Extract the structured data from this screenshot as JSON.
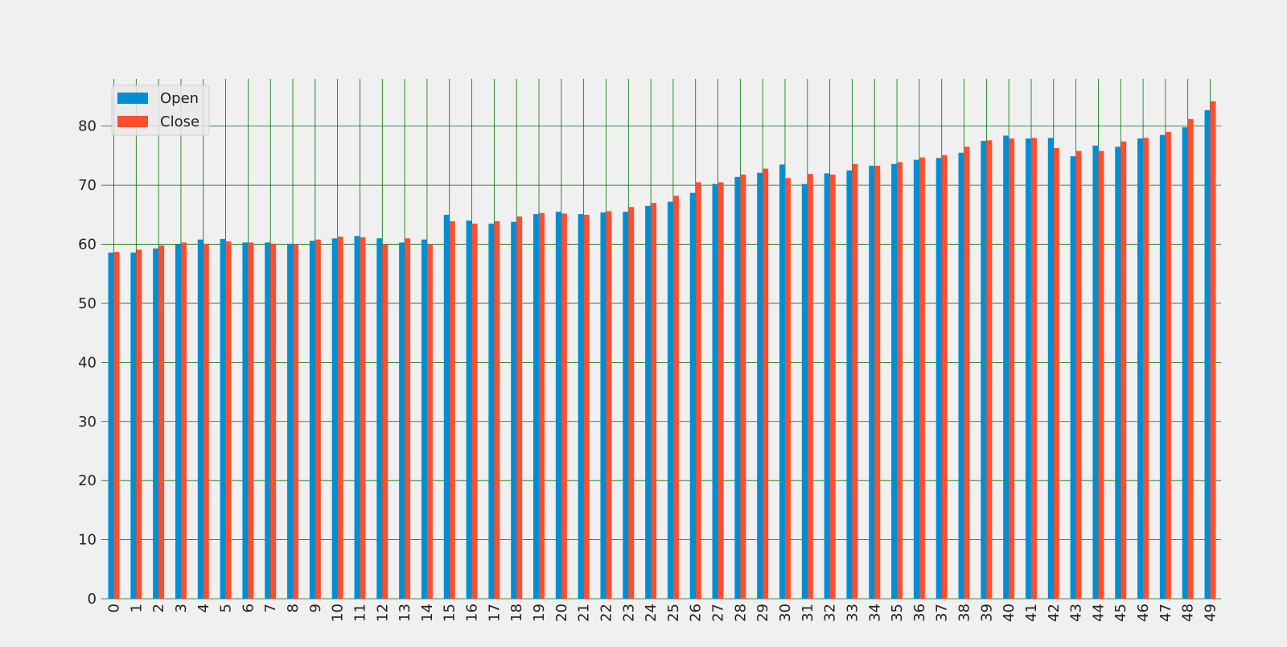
{
  "chart_data": {
    "type": "bar",
    "title": "",
    "xlabel": "",
    "ylabel": "",
    "ylim": [
      0,
      88
    ],
    "yticks": [
      0,
      10,
      20,
      30,
      40,
      50,
      60,
      70,
      80
    ],
    "grid": true,
    "legend_position": "top-left",
    "x_tick_rotation": "vertical",
    "categories": [
      "0",
      "1",
      "2",
      "3",
      "4",
      "5",
      "6",
      "7",
      "8",
      "9",
      "10",
      "11",
      "12",
      "13",
      "14",
      "15",
      "16",
      "17",
      "18",
      "19",
      "20",
      "21",
      "22",
      "23",
      "24",
      "25",
      "26",
      "27",
      "28",
      "29",
      "30",
      "31",
      "32",
      "33",
      "34",
      "35",
      "36",
      "37",
      "38",
      "39",
      "40",
      "41",
      "42",
      "43",
      "44",
      "45",
      "46",
      "47",
      "48",
      "49"
    ],
    "series": [
      {
        "name": "Open",
        "color": "#008fd5",
        "values": [
          58.6,
          58.6,
          59.3,
          60.0,
          60.8,
          60.9,
          60.3,
          60.3,
          60.1,
          60.6,
          61.0,
          61.4,
          61.0,
          60.3,
          60.8,
          65.0,
          64.0,
          63.5,
          63.8,
          65.1,
          65.5,
          65.1,
          65.4,
          65.5,
          66.5,
          67.2,
          68.7,
          70.2,
          71.4,
          72.1,
          73.5,
          70.2,
          72.0,
          72.5,
          73.3,
          73.6,
          74.3,
          74.6,
          75.5,
          77.5,
          78.4,
          77.9,
          78.0,
          74.9,
          76.7,
          76.5,
          77.9,
          78.5,
          79.8,
          82.7
        ]
      },
      {
        "name": "Close",
        "color": "#fc4f30",
        "values": [
          58.7,
          59.1,
          59.8,
          60.3,
          60.1,
          60.5,
          60.3,
          60.1,
          60.0,
          60.8,
          61.3,
          61.2,
          60.0,
          61.0,
          60.0,
          63.9,
          63.5,
          63.9,
          64.7,
          65.3,
          65.2,
          65.0,
          65.6,
          66.3,
          67.0,
          68.2,
          70.5,
          70.5,
          71.8,
          72.8,
          71.2,
          71.9,
          71.8,
          73.6,
          73.3,
          73.9,
          74.7,
          75.1,
          76.5,
          77.6,
          77.9,
          78.0,
          76.3,
          75.8,
          75.8,
          77.4,
          78.0,
          79.0,
          81.2,
          84.2
        ]
      }
    ]
  },
  "style": {
    "background": "#f0f0f0",
    "grid_color": "#007000",
    "tick_label_color": "#222222",
    "legend_bg": "#e9e9e9",
    "legend_border": "#cccccc"
  }
}
